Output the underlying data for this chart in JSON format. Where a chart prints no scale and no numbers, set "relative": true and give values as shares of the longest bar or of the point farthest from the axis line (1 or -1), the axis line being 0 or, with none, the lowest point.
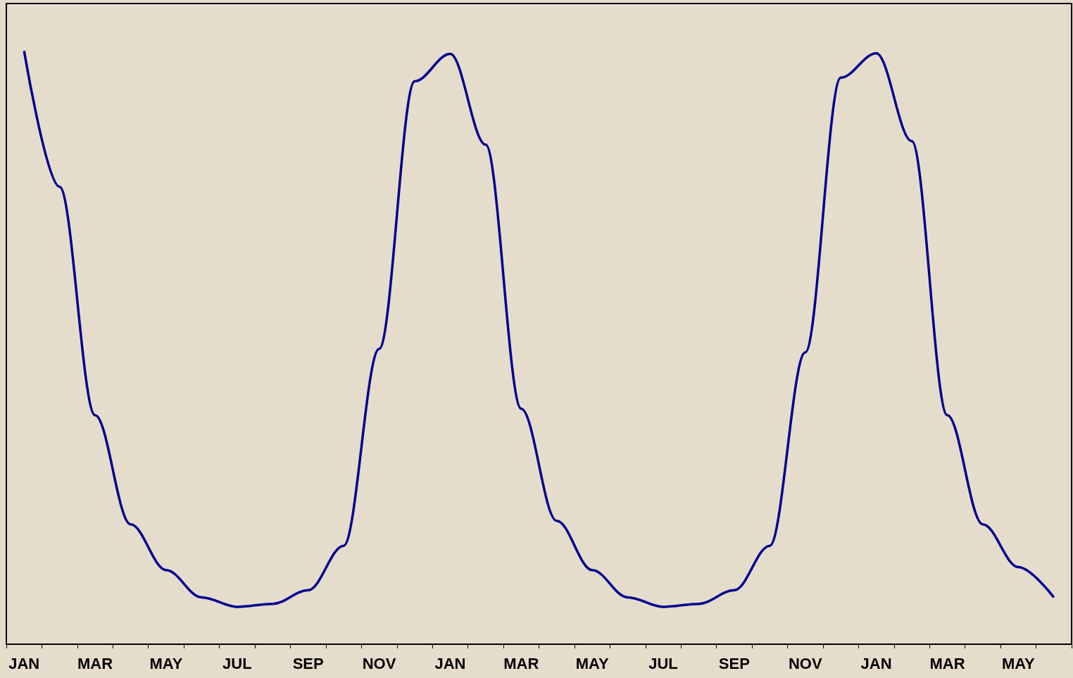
{
  "chart_data": {
    "type": "line",
    "relative": true,
    "color": "#000090",
    "categories": [
      "JAN",
      null,
      "MAR",
      null,
      "MAY",
      null,
      "JUL",
      null,
      "SEP",
      null,
      "NOV",
      null,
      "JAN",
      null,
      "MAR",
      null,
      "MAY",
      null,
      "JUL",
      null,
      "SEP",
      null,
      "NOV",
      null,
      "JAN",
      null,
      "MAR",
      null,
      "MAY",
      null
    ],
    "values": [
      1.0,
      0.771,
      0.386,
      0.202,
      0.125,
      0.079,
      0.063,
      0.068,
      0.091,
      0.166,
      0.498,
      0.949,
      0.995,
      0.842,
      0.397,
      0.208,
      0.125,
      0.079,
      0.063,
      0.068,
      0.091,
      0.166,
      0.492,
      0.955,
      0.996,
      0.848,
      0.386,
      0.202,
      0.13,
      0.079
    ]
  }
}
